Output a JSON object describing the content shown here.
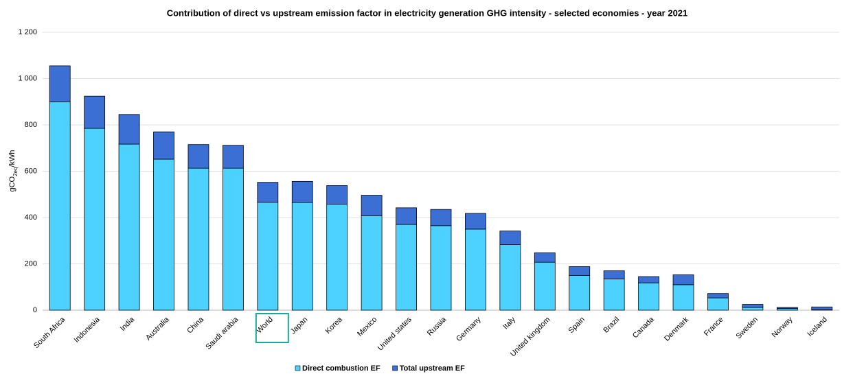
{
  "chart_data": {
    "type": "stacked_bar",
    "title": "Contribution of direct vs upstream emission factor in electricity generation GHG intensity - selected economies - year 2021",
    "ylabel": [
      "gCO",
      "2eq",
      "/kWh"
    ],
    "categories": [
      "South Africa",
      "Indonesia",
      "India",
      "Australia",
      "China",
      "Saudi arabia",
      "World",
      "Japan",
      "Korea",
      "Mexico",
      "United states",
      "Russia",
      "Germany",
      "Italy",
      "United kingdom",
      "Spain",
      "Brazil",
      "Canada",
      "Denmark",
      "France",
      "Sweden",
      "Norway",
      "Iceland"
    ],
    "series": [
      {
        "name": "Direct combustion EF",
        "color": "#4dd2ff",
        "values": [
          900,
          785,
          717,
          652,
          613,
          613,
          466,
          465,
          458,
          408,
          370,
          365,
          350,
          283,
          207,
          150,
          135,
          118,
          110,
          53,
          12,
          7,
          2
        ]
      },
      {
        "name": "Total upstream EF",
        "color": "#3b6fd4",
        "values": [
          155,
          139,
          128,
          118,
          102,
          99,
          86,
          91,
          80,
          88,
          72,
          70,
          68,
          59,
          41,
          38,
          35,
          27,
          43,
          19,
          13,
          5,
          12
        ]
      }
    ],
    "ylim": [
      0,
      1200
    ],
    "yticks": [
      0,
      200,
      400,
      600,
      800,
      {
        "value": 1000,
        "label": "1 000"
      },
      {
        "value": 1200,
        "label": "1 200"
      }
    ],
    "grid": true,
    "legend": "bottom"
  }
}
